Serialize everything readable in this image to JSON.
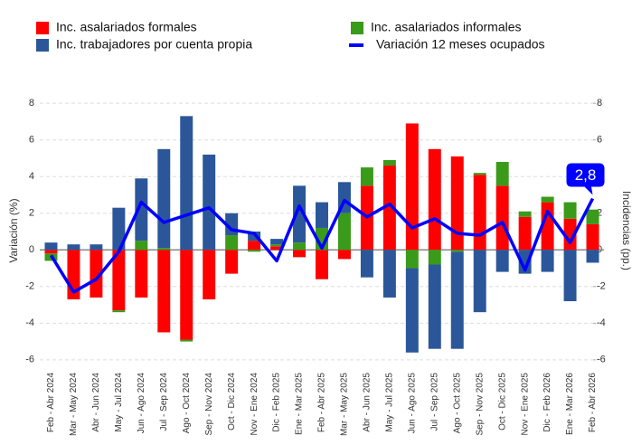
{
  "chart_data": {
    "type": "bar",
    "stacked": true,
    "y_label": "Variación (%)",
    "y2_label": "Incidencias (pp.)",
    "categories": [
      "Feb - Abr 2024",
      "Mar - May 2024",
      "Abr - Jun 2024",
      "May - Jul 2024",
      "Jun - Ago 2024",
      "Jul - Sep 2024",
      "Ago - Oct 2024",
      "Sep - Nov 2024",
      "Oct - Dic 2024",
      "Nov - Ene 2024",
      "Dic - Feb 2025",
      "Ene - Mar 2025",
      "Feb - Abr 2025",
      "Mar - May 2025",
      "Abr - Jun 2025",
      "May - Jul 2025",
      "Jun - Ago 2025",
      "Jul - Sep 2025",
      "Ago - Oct 2025",
      "Sep - Nov 2025",
      "Oct - Dic 2025",
      "Nov - Ene 2025",
      "Dic - Feb 2026",
      "Ene - Mar 2026",
      "Feb - Abr 2026"
    ],
    "series": [
      {
        "name": "Inc. asalariados formales",
        "color": "#ff0000",
        "type": "bar",
        "values": [
          -0.2,
          -2.7,
          -2.6,
          -3.3,
          -2.6,
          -4.5,
          -4.9,
          -2.7,
          -1.3,
          0.5,
          0.2,
          -0.4,
          -1.6,
          -0.5,
          3.5,
          4.6,
          6.9,
          5.5,
          5.1,
          4.1,
          3.5,
          1.8,
          2.6,
          1.7,
          1.4
        ]
      },
      {
        "name": "Inc. asalariados informales",
        "color": "#3a9a1a",
        "type": "bar",
        "values": [
          -0.4,
          0,
          0,
          -0.1,
          0.5,
          0.1,
          -0.1,
          0,
          0.8,
          -0.1,
          0.1,
          0.4,
          1.2,
          2.0,
          1.0,
          0.3,
          -1.0,
          -0.8,
          -0.1,
          0.1,
          1.3,
          0.3,
          0.3,
          0.9,
          0.8
        ]
      },
      {
        "name": "Inc. trabajadores por cuenta propia",
        "color": "#2b579a",
        "type": "bar",
        "values": [
          0.4,
          0.3,
          0.3,
          2.3,
          3.4,
          5.4,
          7.3,
          5.2,
          1.2,
          0.5,
          0.3,
          3.1,
          1.4,
          1.7,
          -1.5,
          -2.6,
          -4.6,
          -4.6,
          -5.3,
          -3.4,
          -1.2,
          -1.3,
          -1.2,
          -2.8,
          -0.7
        ]
      },
      {
        "name": "Variación 12 meses ocupados",
        "color": "#0000ff",
        "type": "line",
        "values": [
          -0.3,
          -2.3,
          -1.6,
          -0.1,
          2.6,
          1.5,
          1.9,
          2.3,
          1.1,
          0.9,
          -0.6,
          2.4,
          0.1,
          2.7,
          1.8,
          2.5,
          1.2,
          1.7,
          0.9,
          0.8,
          1.5,
          -1.1,
          2.1,
          0.4,
          2.8
        ],
        "value_labels": [
          null,
          null,
          null,
          null,
          null,
          null,
          null,
          null,
          null,
          null,
          null,
          null,
          null,
          null,
          null,
          null,
          null,
          null,
          null,
          null,
          null,
          null,
          null,
          null,
          "2,8"
        ]
      }
    ],
    "ylim": [
      -6.6,
      8.7
    ],
    "yticks": [
      -6,
      -4,
      -2,
      0,
      2,
      4,
      6,
      8
    ],
    "y2lim": [
      -6.6,
      8.7
    ],
    "y2ticks": [
      -6,
      -4,
      -2,
      0,
      2,
      4,
      6,
      8
    ],
    "grid": true,
    "legend": "top"
  }
}
